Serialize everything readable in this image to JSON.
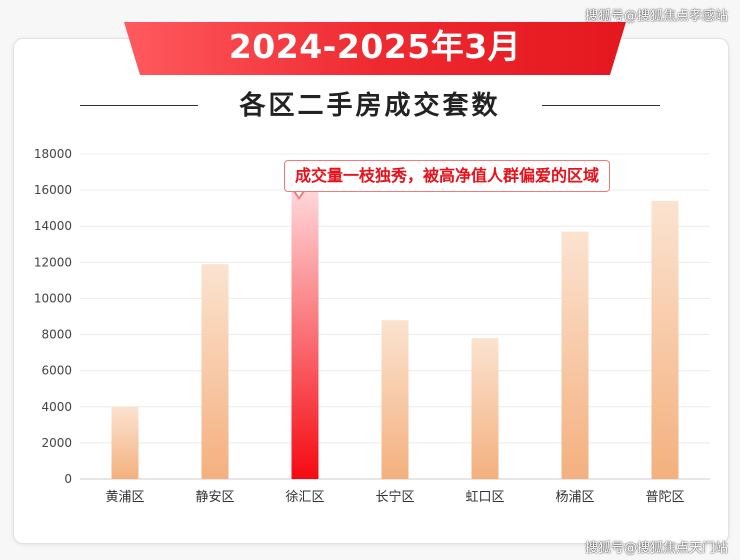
{
  "header": {
    "title": "2024-2025年3月",
    "subtitle": "各区二手房成交套数"
  },
  "watermarks": {
    "top": "搜狐号@搜狐焦点孝感站",
    "bottom": "搜狐号@搜狐焦点天门站"
  },
  "colors": {
    "ribbon": "#e8262d",
    "bar_normal_top": "#fbe3d0",
    "bar_normal_bottom": "#f4b07e",
    "bar_highlight_top": "#ffd6d8",
    "bar_highlight_bottom": "#f50a12",
    "annotation_text": "#e8101a"
  },
  "chart_data": {
    "type": "bar",
    "categories": [
      "黄浦区",
      "静安区",
      "徐汇区",
      "长宁区",
      "虹口区",
      "杨浦区",
      "普陀区"
    ],
    "values": [
      4000,
      11900,
      15900,
      8800,
      7800,
      13700,
      15400
    ],
    "highlight_index": 2,
    "ylim": [
      0,
      18000
    ],
    "yticks": [
      0,
      2000,
      4000,
      6000,
      8000,
      10000,
      12000,
      14000,
      16000,
      18000
    ],
    "grid": true,
    "annotation": "成交量一枝独秀，被高净值人群偏爱的区域"
  }
}
